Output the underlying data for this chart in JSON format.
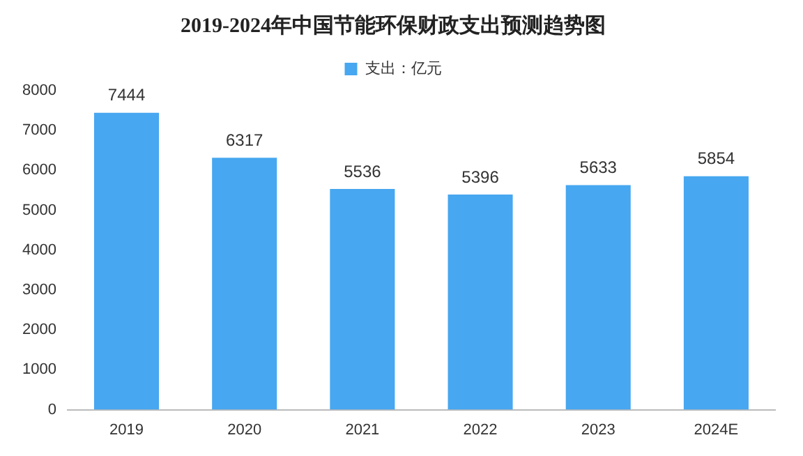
{
  "chart_data": {
    "type": "bar",
    "title": "2019-2024年中国节能环保财政支出预测趋势图",
    "categories": [
      "2019",
      "2020",
      "2021",
      "2022",
      "2023",
      "2024E"
    ],
    "series": [
      {
        "name": "支出：亿元",
        "color": "#47a7f0",
        "values": [
          7444,
          6317,
          5536,
          5396,
          5633,
          5854
        ]
      }
    ],
    "ylim": [
      0,
      8000
    ],
    "yticks": [
      0,
      1000,
      2000,
      3000,
      4000,
      5000,
      6000,
      7000,
      8000
    ],
    "grid": false,
    "legend": "top",
    "data_labels": true
  }
}
